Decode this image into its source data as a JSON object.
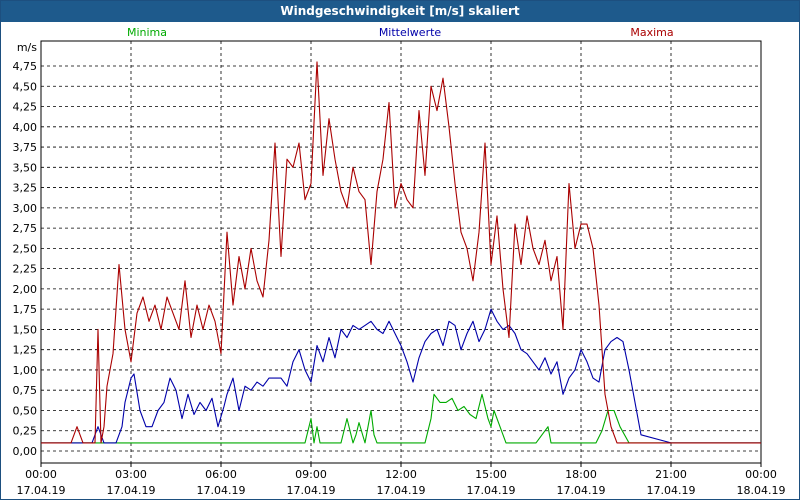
{
  "window": {
    "title": "Windgeschwindigkeit [m/s] skaliert"
  },
  "chart_data": {
    "type": "line",
    "title": "Windgeschwindigkeit [m/s] skaliert",
    "ylabel": "m/s",
    "xlabel": "",
    "ylim": [
      0,
      5
    ],
    "yticks": [
      0,
      0.25,
      0.5,
      0.75,
      1.0,
      1.25,
      1.5,
      1.75,
      2.0,
      2.25,
      2.5,
      2.75,
      3.0,
      3.25,
      3.5,
      3.75,
      4.0,
      4.25,
      4.5,
      4.75
    ],
    "ytick_labels": [
      "0,00",
      "0,25",
      "0,50",
      "0,75",
      "1,00",
      "1,25",
      "1,50",
      "1,75",
      "2,00",
      "2,25",
      "2,50",
      "2,75",
      "3,00",
      "3,25",
      "3,50",
      "3,75",
      "4,00",
      "4,25",
      "4,50",
      "4,75"
    ],
    "xlim": [
      0,
      24
    ],
    "xticks": [
      {
        "time": "00:00",
        "date": "17.04.19"
      },
      {
        "time": "03:00",
        "date": "17.04.19"
      },
      {
        "time": "06:00",
        "date": "17.04.19"
      },
      {
        "time": "09:00",
        "date": "17.04.19"
      },
      {
        "time": "12:00",
        "date": "17.04.19"
      },
      {
        "time": "15:00",
        "date": "17.04.19"
      },
      {
        "time": "18:00",
        "date": "17.04.19"
      },
      {
        "time": "21:00",
        "date": "17.04.19"
      },
      {
        "time": "00:00",
        "date": "18.04.19"
      }
    ],
    "grid": true,
    "legend_position": "top",
    "series": [
      {
        "name": "Minima",
        "color": "#00aa00",
        "x": [
          0.0,
          1.5,
          1.7,
          1.9,
          2.1,
          2.3,
          2.5,
          3.0,
          4.0,
          5.0,
          6.0,
          7.0,
          8.0,
          8.7,
          8.8,
          8.9,
          9.0,
          9.1,
          9.2,
          9.3,
          9.5,
          9.7,
          9.8,
          10.0,
          10.1,
          10.2,
          10.4,
          10.5,
          10.6,
          10.8,
          11.0,
          11.1,
          11.2,
          11.4,
          11.6,
          11.7,
          11.9,
          12.0,
          12.2,
          12.4,
          12.6,
          12.8,
          13.0,
          13.1,
          13.3,
          13.5,
          13.7,
          13.9,
          14.1,
          14.3,
          14.5,
          14.7,
          14.9,
          15.0,
          15.1,
          15.3,
          15.5,
          16.0,
          16.5,
          16.7,
          16.9,
          17.0,
          17.2,
          17.5,
          18.0,
          18.5,
          18.7,
          18.9,
          19.1,
          19.3,
          19.6,
          20.0,
          21.0,
          24.0
        ],
        "y": [
          0.1,
          0.1,
          0.1,
          0.1,
          0.1,
          0.1,
          0.1,
          0.1,
          0.1,
          0.1,
          0.1,
          0.1,
          0.1,
          0.1,
          0.1,
          0.25,
          0.4,
          0.1,
          0.3,
          0.1,
          0.1,
          0.1,
          0.1,
          0.1,
          0.25,
          0.4,
          0.1,
          0.2,
          0.35,
          0.1,
          0.5,
          0.2,
          0.1,
          0.1,
          0.1,
          0.1,
          0.1,
          0.1,
          0.1,
          0.1,
          0.1,
          0.1,
          0.4,
          0.7,
          0.6,
          0.6,
          0.65,
          0.5,
          0.55,
          0.45,
          0.4,
          0.7,
          0.4,
          0.3,
          0.5,
          0.3,
          0.1,
          0.1,
          0.1,
          0.2,
          0.3,
          0.1,
          0.1,
          0.1,
          0.1,
          0.1,
          0.25,
          0.5,
          0.5,
          0.3,
          0.1,
          0.1,
          0.1,
          0.1
        ]
      },
      {
        "name": "Mittelwerte",
        "color": "#0000aa",
        "x": [
          0.0,
          1.5,
          1.7,
          1.8,
          1.9,
          2.0,
          2.1,
          2.3,
          2.5,
          2.7,
          2.8,
          3.0,
          3.1,
          3.3,
          3.5,
          3.7,
          3.9,
          4.1,
          4.3,
          4.5,
          4.7,
          4.9,
          5.1,
          5.3,
          5.5,
          5.7,
          5.9,
          6.1,
          6.2,
          6.4,
          6.6,
          6.8,
          7.0,
          7.2,
          7.4,
          7.6,
          7.8,
          8.0,
          8.2,
          8.4,
          8.6,
          8.8,
          9.0,
          9.2,
          9.4,
          9.6,
          9.8,
          10.0,
          10.2,
          10.4,
          10.6,
          10.8,
          11.0,
          11.2,
          11.4,
          11.6,
          11.8,
          12.0,
          12.2,
          12.4,
          12.6,
          12.8,
          13.0,
          13.2,
          13.4,
          13.6,
          13.8,
          14.0,
          14.2,
          14.4,
          14.6,
          14.8,
          15.0,
          15.2,
          15.4,
          15.6,
          15.8,
          16.0,
          16.2,
          16.4,
          16.6,
          16.8,
          17.0,
          17.2,
          17.4,
          17.6,
          17.8,
          18.0,
          18.2,
          18.4,
          18.6,
          18.8,
          19.0,
          19.2,
          19.4,
          19.6,
          19.8,
          20.0,
          21.0,
          24.0
        ],
        "y": [
          0.1,
          0.1,
          0.1,
          0.2,
          0.3,
          0.2,
          0.1,
          0.1,
          0.1,
          0.3,
          0.6,
          0.9,
          0.95,
          0.5,
          0.3,
          0.3,
          0.5,
          0.6,
          0.9,
          0.75,
          0.4,
          0.7,
          0.45,
          0.6,
          0.5,
          0.65,
          0.3,
          0.55,
          0.7,
          0.9,
          0.5,
          0.8,
          0.75,
          0.85,
          0.8,
          0.9,
          0.9,
          0.9,
          0.8,
          1.1,
          1.25,
          1.0,
          0.85,
          1.3,
          1.1,
          1.4,
          1.15,
          1.5,
          1.4,
          1.55,
          1.5,
          1.55,
          1.6,
          1.5,
          1.45,
          1.6,
          1.45,
          1.3,
          1.1,
          0.85,
          1.15,
          1.35,
          1.45,
          1.5,
          1.3,
          1.6,
          1.55,
          1.25,
          1.45,
          1.6,
          1.35,
          1.5,
          1.75,
          1.6,
          1.5,
          1.55,
          1.45,
          1.25,
          1.2,
          1.1,
          1.0,
          1.15,
          0.95,
          1.1,
          0.7,
          0.9,
          1.0,
          1.25,
          1.1,
          0.9,
          0.85,
          1.25,
          1.35,
          1.4,
          1.35,
          1.0,
          0.6,
          0.2,
          0.1,
          0.1
        ]
      },
      {
        "name": "Maxima",
        "color": "#aa0000",
        "x": [
          0.0,
          1.0,
          1.2,
          1.4,
          1.6,
          1.8,
          1.9,
          2.0,
          2.1,
          2.2,
          2.4,
          2.6,
          2.8,
          3.0,
          3.2,
          3.4,
          3.6,
          3.8,
          4.0,
          4.2,
          4.4,
          4.6,
          4.8,
          5.0,
          5.2,
          5.4,
          5.6,
          5.8,
          6.0,
          6.2,
          6.4,
          6.6,
          6.8,
          7.0,
          7.2,
          7.4,
          7.6,
          7.8,
          8.0,
          8.2,
          8.4,
          8.6,
          8.8,
          9.0,
          9.2,
          9.4,
          9.6,
          9.8,
          10.0,
          10.2,
          10.4,
          10.6,
          10.8,
          11.0,
          11.2,
          11.4,
          11.6,
          11.8,
          12.0,
          12.2,
          12.4,
          12.6,
          12.8,
          13.0,
          13.2,
          13.4,
          13.6,
          13.8,
          14.0,
          14.2,
          14.4,
          14.6,
          14.8,
          15.0,
          15.2,
          15.4,
          15.6,
          15.8,
          16.0,
          16.2,
          16.4,
          16.6,
          16.8,
          17.0,
          17.2,
          17.4,
          17.6,
          17.8,
          18.0,
          18.2,
          18.4,
          18.6,
          18.8,
          19.0,
          19.2,
          19.4,
          19.6,
          19.8,
          20.0,
          21.0,
          24.0
        ],
        "y": [
          0.1,
          0.1,
          0.3,
          0.1,
          0.1,
          0.1,
          1.5,
          0.1,
          0.3,
          0.8,
          1.2,
          2.3,
          1.5,
          1.1,
          1.7,
          1.9,
          1.6,
          1.8,
          1.5,
          1.9,
          1.7,
          1.5,
          2.1,
          1.4,
          1.8,
          1.5,
          1.8,
          1.6,
          1.2,
          2.7,
          1.8,
          2.4,
          2.0,
          2.5,
          2.1,
          1.9,
          2.6,
          3.8,
          2.4,
          3.6,
          3.5,
          3.8,
          3.1,
          3.3,
          4.8,
          3.4,
          4.1,
          3.6,
          3.2,
          3.0,
          3.5,
          3.2,
          3.1,
          2.3,
          3.2,
          3.6,
          4.3,
          3.0,
          3.3,
          3.1,
          3.0,
          4.2,
          3.4,
          4.5,
          4.2,
          4.6,
          4.0,
          3.3,
          2.7,
          2.5,
          2.1,
          2.7,
          3.8,
          2.3,
          2.9,
          2.0,
          1.4,
          2.8,
          2.3,
          2.9,
          2.5,
          2.3,
          2.6,
          2.1,
          2.4,
          1.5,
          3.3,
          2.5,
          2.8,
          2.8,
          2.5,
          1.8,
          0.7,
          0.3,
          0.1,
          0.1,
          0.1,
          0.1,
          0.1,
          0.1,
          0.1
        ]
      }
    ]
  }
}
